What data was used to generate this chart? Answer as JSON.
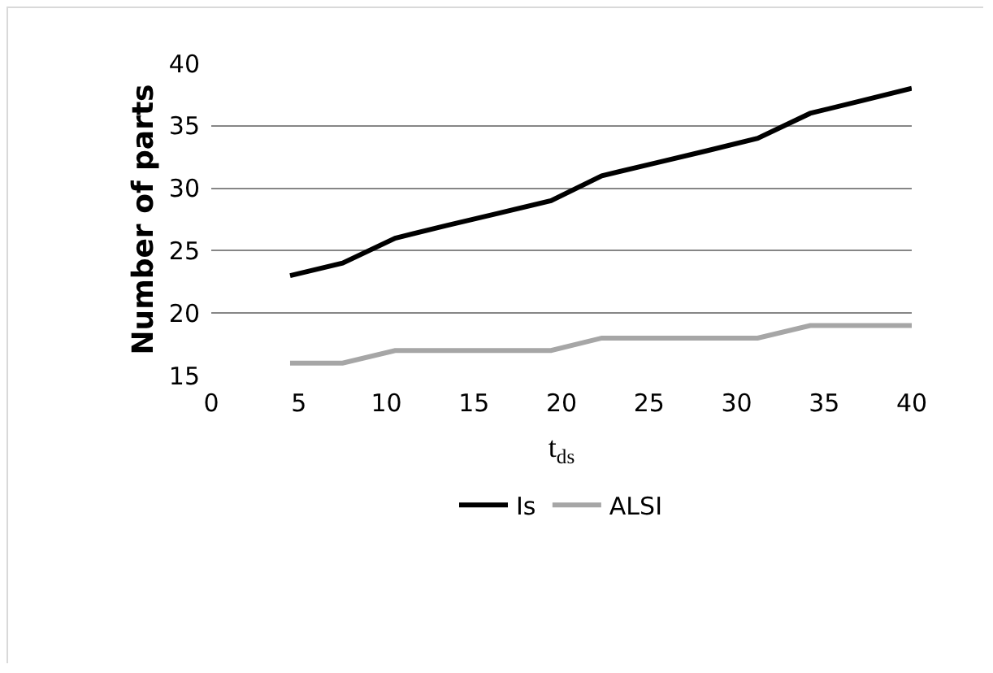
{
  "chart_data": {
    "type": "line",
    "xlabel": "t$_{ds}$",
    "ylabel": "Number of parts",
    "x": [
      4.5,
      7.5,
      10.5,
      13.4,
      16.4,
      19.4,
      22.3,
      25.3,
      28.3,
      31.2,
      34.2,
      37.1,
      40
    ],
    "series": [
      {
        "name": "Is",
        "color": "#000000",
        "values": [
          23,
          24,
          26,
          27,
          28,
          29,
          31,
          32,
          33,
          34,
          36,
          37,
          38
        ]
      },
      {
        "name": "ALSI",
        "color": "#a6a6a6",
        "values": [
          16,
          16,
          17,
          17,
          17,
          17,
          18,
          18,
          18,
          18,
          19,
          19,
          19
        ]
      }
    ],
    "xlim": [
      0,
      40
    ],
    "xticks": [
      0,
      5,
      10,
      15,
      20,
      25,
      30,
      35,
      40
    ],
    "ylim": [
      15,
      40
    ],
    "yticks": [
      15,
      20,
      25,
      30,
      35,
      40
    ],
    "grid": "y",
    "legend": "bottom",
    "marker": "none",
    "line_style": "solid"
  }
}
